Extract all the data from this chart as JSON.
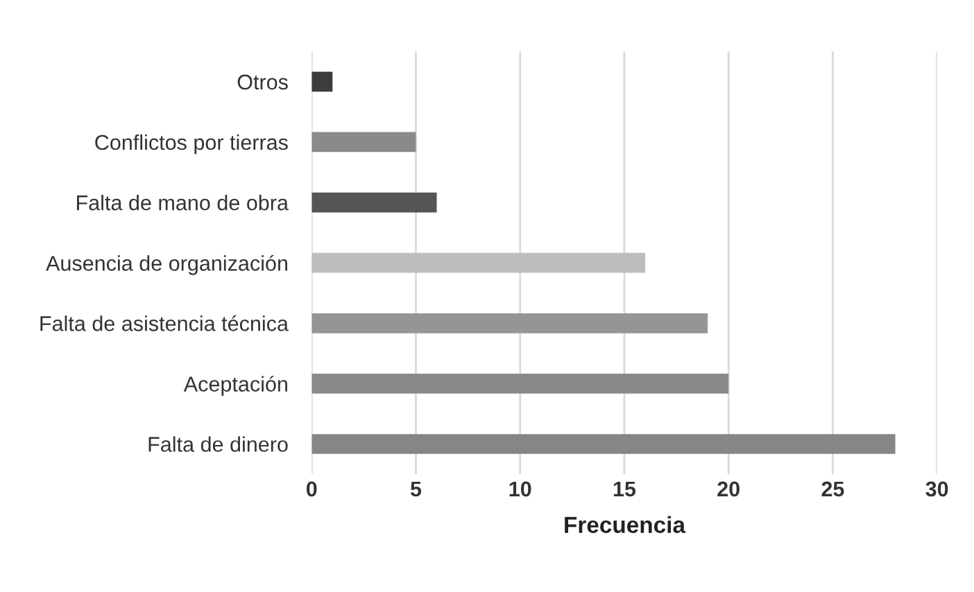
{
  "chart_data": {
    "type": "bar",
    "orientation": "horizontal",
    "categories": [
      "Otros",
      "Conflictos por tierras",
      "Falta de mano de obra",
      "Ausencia de organización",
      "Falta de asistencia técnica",
      "Aceptación",
      "Falta de dinero"
    ],
    "values": [
      1,
      5,
      6,
      16,
      19,
      20,
      28
    ],
    "colors": [
      "#3c3c3c",
      "#8a8a8a",
      "#555555",
      "#bdbdbd",
      "#959595",
      "#8a8a8a",
      "#868686"
    ],
    "xlabel": "Frecuencia",
    "xlim": [
      0,
      30
    ],
    "xticks": [
      0,
      5,
      10,
      15,
      20,
      25,
      30
    ],
    "grid": "x"
  }
}
